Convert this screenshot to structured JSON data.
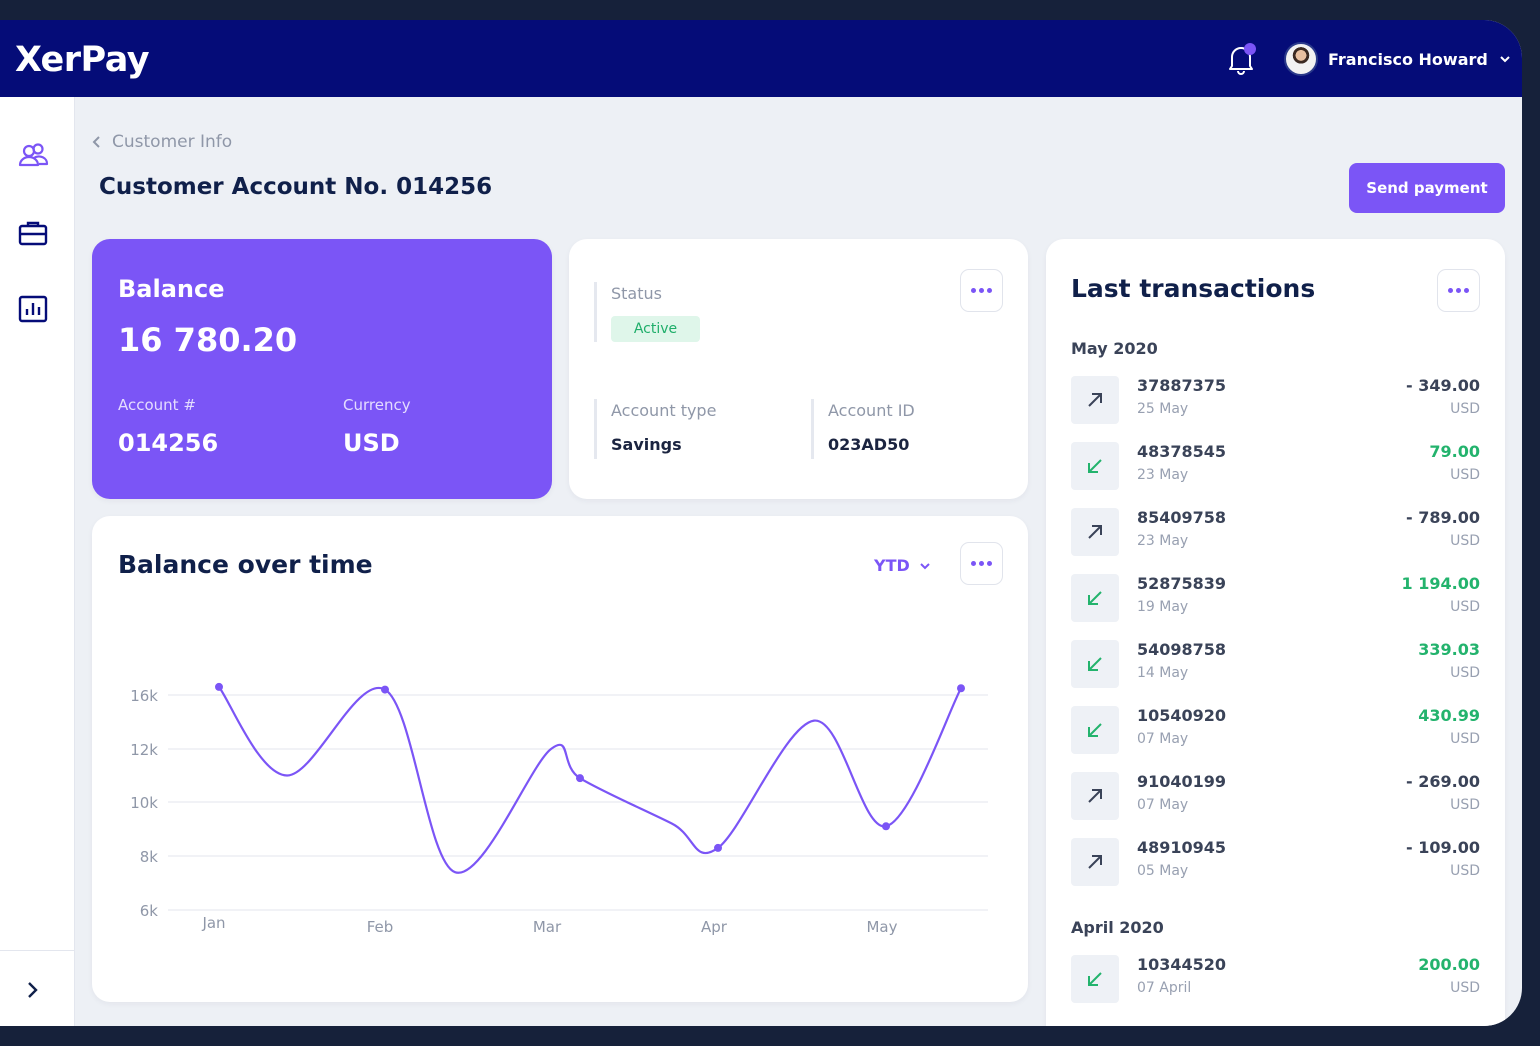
{
  "header": {
    "logo": "XerPay",
    "user_name": "Francisco Howard"
  },
  "sidebar": {
    "items": [
      {
        "icon": "users-icon"
      },
      {
        "icon": "briefcase-icon"
      },
      {
        "icon": "bar-chart-icon"
      }
    ],
    "expand_icon": "chevron-right-icon"
  },
  "page": {
    "breadcrumb": "Customer Info",
    "title": "Customer Account No. 014256",
    "send_button": "Send payment"
  },
  "balance": {
    "label": "Balance",
    "value": "16 780.20",
    "account_label": "Account #",
    "account_value": "014256",
    "currency_label": "Currency",
    "currency_value": "USD"
  },
  "status_card": {
    "status_label": "Status",
    "status_value": "Active",
    "account_type_label": "Account type",
    "account_type_value": "Savings",
    "account_id_label": "Account ID",
    "account_id_value": "023AD50"
  },
  "chart_card": {
    "title": "Balance over time",
    "period": "YTD"
  },
  "chart_data": {
    "type": "line",
    "title": "Balance over time",
    "xlabel": "",
    "ylabel": "",
    "x_ticks": [
      "Jan",
      "Feb",
      "Mar",
      "Apr",
      "May"
    ],
    "y_ticks": [
      "6k",
      "8k",
      "10k",
      "12k",
      "16k"
    ],
    "grid": true,
    "series": [
      {
        "color": "#7b55f6",
        "points": [
          {
            "x": "Jan",
            "y": 16.6
          },
          {
            "x": "Jan-Feb",
            "y": 11.0
          },
          {
            "x": "Feb",
            "y": 16.4
          },
          {
            "x": "Feb-Mar",
            "y": 7.4
          },
          {
            "x": "Mar",
            "y": 12.0
          },
          {
            "x": "Mar",
            "y": 10.9
          },
          {
            "x": "Mar-Apr",
            "y": 9.2
          },
          {
            "x": "Apr",
            "y": 8.3
          },
          {
            "x": "Apr-May",
            "y": 14.1
          },
          {
            "x": "May",
            "y": 9.1
          },
          {
            "x": "May end",
            "y": 16.5
          }
        ]
      }
    ]
  },
  "transactions": {
    "title": "Last transactions",
    "groups": [
      {
        "month": "May 2020",
        "items": [
          {
            "id": "37887375",
            "date": "25 May",
            "amount": "- 349.00",
            "currency": "USD",
            "direction": "out"
          },
          {
            "id": "48378545",
            "date": "23 May",
            "amount": "79.00",
            "currency": "USD",
            "direction": "in"
          },
          {
            "id": "85409758",
            "date": "23 May",
            "amount": "- 789.00",
            "currency": "USD",
            "direction": "out"
          },
          {
            "id": "52875839",
            "date": "19 May",
            "amount": "1 194.00",
            "currency": "USD",
            "direction": "in"
          },
          {
            "id": "54098758",
            "date": "14 May",
            "amount": "339.03",
            "currency": "USD",
            "direction": "in"
          },
          {
            "id": "10540920",
            "date": "07 May",
            "amount": "430.99",
            "currency": "USD",
            "direction": "in"
          },
          {
            "id": "91040199",
            "date": "07 May",
            "amount": "- 269.00",
            "currency": "USD",
            "direction": "out"
          },
          {
            "id": "48910945",
            "date": "05 May",
            "amount": "- 109.00",
            "currency": "USD",
            "direction": "out"
          }
        ]
      },
      {
        "month": "April 2020",
        "items": [
          {
            "id": "10344520",
            "date": "07 April",
            "amount": "200.00",
            "currency": "USD",
            "direction": "in"
          }
        ]
      }
    ]
  },
  "colors": {
    "accent": "#7b55f6",
    "header_bg": "#050c78",
    "positive": "#23b36d",
    "active_badge_bg": "#dff6ea"
  }
}
